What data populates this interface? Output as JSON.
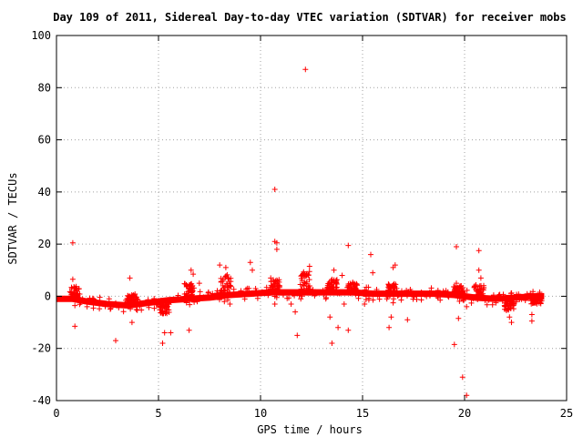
{
  "chart_data": {
    "type": "scatter",
    "title": "Day 109 of 2011, Sidereal Day-to-day VTEC variation (SDTVAR) for receiver mobs",
    "xlabel": "GPS time / hours",
    "ylabel": "SDTVAR / TECUs",
    "xlim": [
      0,
      25
    ],
    "ylim": [
      -40,
      100
    ],
    "xticks": [
      "0",
      "5",
      "10",
      "15",
      "20",
      "25"
    ],
    "yticks": [
      "-40",
      "-20",
      "0",
      "20",
      "40",
      "60",
      "80",
      "100"
    ],
    "grid": true,
    "marker": "+",
    "color": "#ff0000",
    "series": [
      {
        "baseline": [
          [
            0,
            -1
          ],
          [
            0.8,
            -1
          ],
          [
            1.5,
            -2
          ],
          [
            2.5,
            -3
          ],
          [
            3.5,
            -3.5
          ],
          [
            4.5,
            -2.5
          ],
          [
            5.5,
            -1.5
          ],
          [
            6.5,
            -1
          ],
          [
            7.5,
            -0.5
          ],
          [
            8.5,
            0.5
          ],
          [
            9.5,
            1
          ],
          [
            10.5,
            1.5
          ],
          [
            11.5,
            1.5
          ],
          [
            12.5,
            1.5
          ],
          [
            13.5,
            1.5
          ],
          [
            14.5,
            1.5
          ],
          [
            15.5,
            1
          ],
          [
            16.5,
            1
          ],
          [
            17.5,
            1
          ],
          [
            18.5,
            1
          ],
          [
            19.5,
            0.5
          ],
          [
            20.5,
            -0.5
          ],
          [
            21.5,
            -1
          ],
          [
            22.5,
            -0.5
          ],
          [
            23.5,
            0
          ],
          [
            23.9,
            0
          ]
        ],
        "bursts": [
          [
            0.9,
            5
          ],
          [
            3.7,
            4
          ],
          [
            5.3,
            -5
          ],
          [
            6.5,
            6
          ],
          [
            8.3,
            8
          ],
          [
            10.7,
            5
          ],
          [
            12.2,
            8
          ],
          [
            13.5,
            5
          ],
          [
            14.5,
            4
          ],
          [
            16.5,
            4
          ],
          [
            19.7,
            4
          ],
          [
            20.7,
            5
          ],
          [
            22.2,
            -5
          ],
          [
            23.5,
            -3
          ]
        ],
        "outliers": [
          [
            0.8,
            20.5
          ],
          [
            0.8,
            6.5
          ],
          [
            0.9,
            -11.5
          ],
          [
            0.9,
            1
          ],
          [
            1.5,
            -4
          ],
          [
            2.9,
            -17
          ],
          [
            3.6,
            7
          ],
          [
            3.7,
            -10
          ],
          [
            5.2,
            -18
          ],
          [
            5.3,
            -14
          ],
          [
            5.6,
            -14
          ],
          [
            6.5,
            -13
          ],
          [
            6.6,
            10
          ],
          [
            6.7,
            8.5
          ],
          [
            7.0,
            5
          ],
          [
            8.0,
            12
          ],
          [
            8.3,
            11
          ],
          [
            8.5,
            -3
          ],
          [
            9.5,
            13
          ],
          [
            9.6,
            10
          ],
          [
            10.5,
            7
          ],
          [
            10.7,
            41
          ],
          [
            10.7,
            21
          ],
          [
            10.8,
            20.5
          ],
          [
            10.8,
            18
          ],
          [
            10.7,
            -3
          ],
          [
            11.5,
            -3
          ],
          [
            11.7,
            -6
          ],
          [
            11.8,
            -15
          ],
          [
            12.2,
            87
          ],
          [
            12.4,
            11.5
          ],
          [
            13.2,
            -1
          ],
          [
            13.4,
            -8
          ],
          [
            13.5,
            -18
          ],
          [
            13.6,
            10
          ],
          [
            13.8,
            -12
          ],
          [
            14.1,
            -3
          ],
          [
            14.0,
            8
          ],
          [
            14.3,
            19.5
          ],
          [
            14.3,
            -13
          ],
          [
            15.1,
            -3
          ],
          [
            15.4,
            16
          ],
          [
            15.5,
            9
          ],
          [
            16.3,
            -12
          ],
          [
            16.4,
            -8
          ],
          [
            16.5,
            -2.5
          ],
          [
            16.6,
            12
          ],
          [
            16.5,
            11
          ],
          [
            17.2,
            -9
          ],
          [
            19.5,
            -18.5
          ],
          [
            19.6,
            5
          ],
          [
            19.6,
            19
          ],
          [
            19.7,
            -8.5
          ],
          [
            19.9,
            -31
          ],
          [
            20.1,
            -38
          ],
          [
            20.1,
            -4
          ],
          [
            20.7,
            17.5
          ],
          [
            20.7,
            10
          ],
          [
            20.8,
            7
          ],
          [
            20.6,
            2
          ],
          [
            22.2,
            -8
          ],
          [
            22.3,
            -10
          ],
          [
            23.3,
            -9.5
          ],
          [
            23.3,
            -7
          ],
          [
            23.6,
            -1.5
          ]
        ]
      }
    ]
  }
}
